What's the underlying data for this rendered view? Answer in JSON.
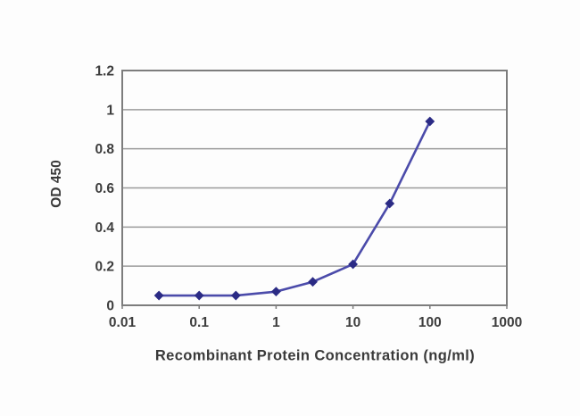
{
  "chart_data": {
    "type": "line",
    "title": "",
    "xlabel": "Recombinant Protein Concentration (ng/ml)",
    "ylabel": "OD 450",
    "x_scale": "log",
    "xlim": [
      0.01,
      1000
    ],
    "ylim": [
      0,
      1.2
    ],
    "x_ticks": [
      "0.01",
      "0.1",
      "1",
      "10",
      "100",
      "1000"
    ],
    "y_ticks": [
      "0",
      "0.2",
      "0.4",
      "0.6",
      "0.8",
      "1",
      "1.2"
    ],
    "grid": "horizontal",
    "legend": "none",
    "series": [
      {
        "name": "OD 450",
        "x": [
          0.03,
          0.1,
          0.3,
          1,
          3,
          10,
          30,
          100
        ],
        "y": [
          0.05,
          0.05,
          0.05,
          0.07,
          0.12,
          0.21,
          0.52,
          0.94
        ],
        "marker": "diamond"
      }
    ]
  },
  "colors": {
    "line": "#4b4baa",
    "marker": "#2b2b85",
    "gridline": "#9b9b9b",
    "axis_border": "#7d7d7d",
    "tick_text": "#3d3d3d",
    "background": "#fdfdfd"
  }
}
